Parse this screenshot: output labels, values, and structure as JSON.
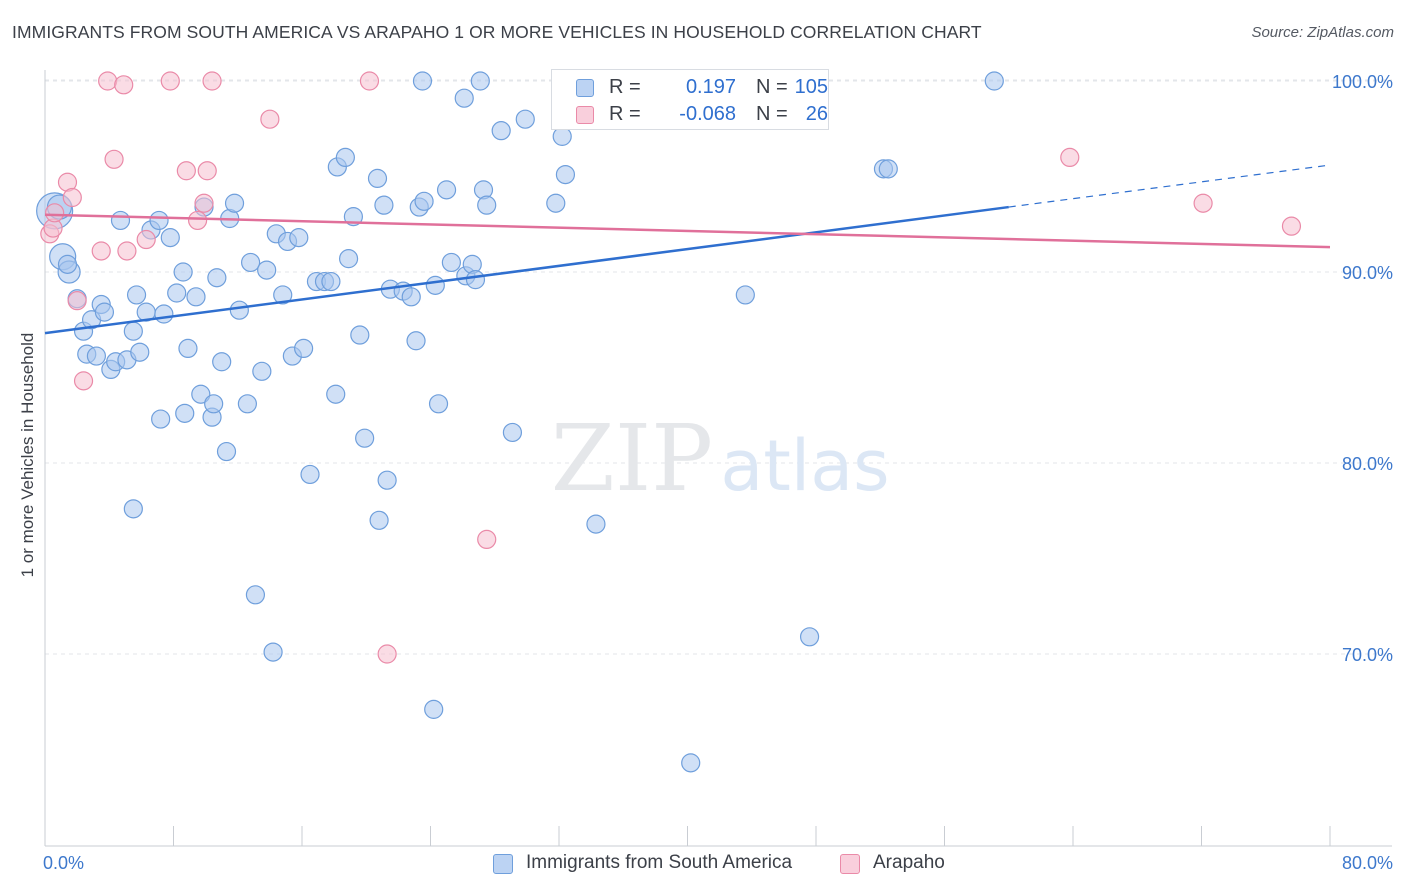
{
  "header": {
    "title": "IMMIGRANTS FROM SOUTH AMERICA VS ARAPAHO 1 OR MORE VEHICLES IN HOUSEHOLD CORRELATION CHART",
    "source": "Source: ZipAtlas.com"
  },
  "watermark": {
    "zip": "ZIP",
    "atlas": "atlas"
  },
  "legend": {
    "series": [
      {
        "name": "Immigrants from South America",
        "r_label": "R =",
        "r_value": "0.197",
        "n_label": "N =",
        "n_value": "105"
      },
      {
        "name": "Arapaho",
        "r_label": "R =",
        "r_value": "-0.068",
        "n_label": "N =",
        "n_value": "26"
      }
    ]
  },
  "chart_data": {
    "type": "scatter",
    "title": "IMMIGRANTS FROM SOUTH AMERICA VS ARAPAHO 1 OR MORE VEHICLES IN HOUSEHOLD CORRELATION CHART",
    "xlabel": "",
    "ylabel": "1 or more Vehicles in Household",
    "xlim": [
      0,
      80
    ],
    "ylim": [
      60,
      102
    ],
    "x_tick_labels": [
      "0.0%",
      "80.0%"
    ],
    "y_ticks": [
      70,
      80,
      90,
      100
    ],
    "y_tick_labels": [
      "70.0%",
      "80.0%",
      "90.0%",
      "100.0%"
    ],
    "grid": true,
    "legend_position": "top-center",
    "series": [
      {
        "name": "Immigrants from South America",
        "color": "#a9c6ee",
        "stroke": "#6f9fdc",
        "trend": {
          "x0": 0,
          "y0": 86.8,
          "x1": 60,
          "y1": 93.4,
          "dash_to_x": 80,
          "dash_to_y": 95.6,
          "color": "#2f6fcf"
        },
        "points": [
          {
            "x": 0.6,
            "y": 93.2,
            "s": 18
          },
          {
            "x": 0.9,
            "y": 93.4,
            "s": 12
          },
          {
            "x": 1.1,
            "y": 90.8,
            "s": 13
          },
          {
            "x": 1.5,
            "y": 90.0,
            "s": 11
          },
          {
            "x": 1.4,
            "y": 90.4,
            "s": 9
          },
          {
            "x": 2.0,
            "y": 88.6,
            "s": 9
          },
          {
            "x": 2.4,
            "y": 86.9,
            "s": 9
          },
          {
            "x": 2.6,
            "y": 85.7,
            "s": 9
          },
          {
            "x": 2.9,
            "y": 87.5,
            "s": 9
          },
          {
            "x": 3.2,
            "y": 85.6,
            "s": 9
          },
          {
            "x": 3.5,
            "y": 88.3,
            "s": 9
          },
          {
            "x": 3.7,
            "y": 87.9,
            "s": 9
          },
          {
            "x": 4.1,
            "y": 84.9,
            "s": 9
          },
          {
            "x": 4.4,
            "y": 85.3,
            "s": 9
          },
          {
            "x": 4.7,
            "y": 92.7,
            "s": 9
          },
          {
            "x": 5.1,
            "y": 85.4,
            "s": 9
          },
          {
            "x": 5.5,
            "y": 86.9,
            "s": 9
          },
          {
            "x": 5.9,
            "y": 85.8,
            "s": 9
          },
          {
            "x": 6.3,
            "y": 87.9,
            "s": 9
          },
          {
            "x": 6.6,
            "y": 92.2,
            "s": 9
          },
          {
            "x": 7.1,
            "y": 92.7,
            "s": 9
          },
          {
            "x": 7.4,
            "y": 87.8,
            "s": 9
          },
          {
            "x": 7.8,
            "y": 91.8,
            "s": 9
          },
          {
            "x": 8.2,
            "y": 88.9,
            "s": 9
          },
          {
            "x": 8.6,
            "y": 90.0,
            "s": 9
          },
          {
            "x": 8.9,
            "y": 86.0,
            "s": 9
          },
          {
            "x": 9.4,
            "y": 88.7,
            "s": 9
          },
          {
            "x": 9.9,
            "y": 93.4,
            "s": 9
          },
          {
            "x": 10.7,
            "y": 89.7,
            "s": 9
          },
          {
            "x": 11.0,
            "y": 85.3,
            "s": 9
          },
          {
            "x": 11.5,
            "y": 92.8,
            "s": 9
          },
          {
            "x": 11.8,
            "y": 93.6,
            "s": 9
          },
          {
            "x": 12.1,
            "y": 88.0,
            "s": 9
          },
          {
            "x": 12.8,
            "y": 90.5,
            "s": 9
          },
          {
            "x": 13.5,
            "y": 84.8,
            "s": 9
          },
          {
            "x": 13.8,
            "y": 90.1,
            "s": 9
          },
          {
            "x": 14.4,
            "y": 92.0,
            "s": 9
          },
          {
            "x": 14.8,
            "y": 88.8,
            "s": 9
          },
          {
            "x": 15.1,
            "y": 91.6,
            "s": 9
          },
          {
            "x": 15.4,
            "y": 85.6,
            "s": 9
          },
          {
            "x": 15.8,
            "y": 91.8,
            "s": 9
          },
          {
            "x": 16.1,
            "y": 86.0,
            "s": 9
          },
          {
            "x": 16.9,
            "y": 89.5,
            "s": 9
          },
          {
            "x": 17.4,
            "y": 89.5,
            "s": 9
          },
          {
            "x": 17.8,
            "y": 89.5,
            "s": 9
          },
          {
            "x": 18.2,
            "y": 95.5,
            "s": 9
          },
          {
            "x": 18.7,
            "y": 96.0,
            "s": 9
          },
          {
            "x": 18.9,
            "y": 90.7,
            "s": 9
          },
          {
            "x": 19.2,
            "y": 92.9,
            "s": 9
          },
          {
            "x": 19.6,
            "y": 86.7,
            "s": 9
          },
          {
            "x": 20.7,
            "y": 94.9,
            "s": 9
          },
          {
            "x": 21.1,
            "y": 93.5,
            "s": 9
          },
          {
            "x": 21.5,
            "y": 89.1,
            "s": 9
          },
          {
            "x": 22.3,
            "y": 89.0,
            "s": 9
          },
          {
            "x": 22.8,
            "y": 88.7,
            "s": 9
          },
          {
            "x": 23.1,
            "y": 86.4,
            "s": 9
          },
          {
            "x": 23.3,
            "y": 93.4,
            "s": 9
          },
          {
            "x": 23.6,
            "y": 93.7,
            "s": 9
          },
          {
            "x": 24.3,
            "y": 89.3,
            "s": 9
          },
          {
            "x": 25.0,
            "y": 94.3,
            "s": 9
          },
          {
            "x": 25.3,
            "y": 90.5,
            "s": 9
          },
          {
            "x": 26.2,
            "y": 89.8,
            "s": 9
          },
          {
            "x": 26.6,
            "y": 90.4,
            "s": 9
          },
          {
            "x": 26.8,
            "y": 89.6,
            "s": 9
          },
          {
            "x": 27.3,
            "y": 94.3,
            "s": 9
          },
          {
            "x": 27.5,
            "y": 93.5,
            "s": 9
          },
          {
            "x": 28.4,
            "y": 97.4,
            "s": 9
          },
          {
            "x": 29.9,
            "y": 98.0,
            "s": 9
          },
          {
            "x": 31.8,
            "y": 93.6,
            "s": 9
          },
          {
            "x": 32.2,
            "y": 97.1,
            "s": 9
          },
          {
            "x": 32.4,
            "y": 95.1,
            "s": 9
          },
          {
            "x": 23.5,
            "y": 100.0,
            "s": 9
          },
          {
            "x": 27.1,
            "y": 100.0,
            "s": 9
          },
          {
            "x": 36.2,
            "y": 100.0,
            "s": 9
          },
          {
            "x": 37.8,
            "y": 100.0,
            "s": 9
          },
          {
            "x": 26.1,
            "y": 99.1,
            "s": 9
          },
          {
            "x": 52.2,
            "y": 95.4,
            "s": 9
          },
          {
            "x": 52.5,
            "y": 95.4,
            "s": 9
          },
          {
            "x": 59.1,
            "y": 100.0,
            "s": 9
          },
          {
            "x": 43.6,
            "y": 88.8,
            "s": 9
          },
          {
            "x": 5.7,
            "y": 88.8,
            "s": 9
          },
          {
            "x": 7.2,
            "y": 82.3,
            "s": 9
          },
          {
            "x": 8.7,
            "y": 82.6,
            "s": 9
          },
          {
            "x": 9.7,
            "y": 83.6,
            "s": 9
          },
          {
            "x": 10.4,
            "y": 82.4,
            "s": 9
          },
          {
            "x": 10.5,
            "y": 83.1,
            "s": 9
          },
          {
            "x": 11.3,
            "y": 80.6,
            "s": 9
          },
          {
            "x": 12.6,
            "y": 83.1,
            "s": 9
          },
          {
            "x": 18.1,
            "y": 83.6,
            "s": 9
          },
          {
            "x": 19.9,
            "y": 81.3,
            "s": 9
          },
          {
            "x": 24.5,
            "y": 83.1,
            "s": 9
          },
          {
            "x": 29.1,
            "y": 81.6,
            "s": 9
          },
          {
            "x": 16.5,
            "y": 79.4,
            "s": 9
          },
          {
            "x": 21.3,
            "y": 79.1,
            "s": 9
          },
          {
            "x": 5.5,
            "y": 77.6,
            "s": 9
          },
          {
            "x": 20.8,
            "y": 77.0,
            "s": 9
          },
          {
            "x": 34.3,
            "y": 76.8,
            "s": 9
          },
          {
            "x": 13.1,
            "y": 73.1,
            "s": 9
          },
          {
            "x": 47.6,
            "y": 70.9,
            "s": 9
          },
          {
            "x": 14.2,
            "y": 70.1,
            "s": 9
          },
          {
            "x": 24.2,
            "y": 67.1,
            "s": 9
          },
          {
            "x": 40.2,
            "y": 64.3,
            "s": 9
          }
        ]
      },
      {
        "name": "Arapaho",
        "color": "#f6bfd0",
        "stroke": "#ea8aa8",
        "trend": {
          "x0": 0,
          "y0": 93.0,
          "x1": 80,
          "y1": 91.3,
          "color": "#e0709a"
        },
        "points": [
          {
            "x": 0.3,
            "y": 92.0,
            "s": 9
          },
          {
            "x": 0.5,
            "y": 92.3,
            "s": 9
          },
          {
            "x": 0.6,
            "y": 93.1,
            "s": 9
          },
          {
            "x": 1.4,
            "y": 94.7,
            "s": 9
          },
          {
            "x": 1.7,
            "y": 93.9,
            "s": 9
          },
          {
            "x": 2.0,
            "y": 88.5,
            "s": 9
          },
          {
            "x": 2.4,
            "y": 84.3,
            "s": 9
          },
          {
            "x": 3.5,
            "y": 91.1,
            "s": 9
          },
          {
            "x": 4.3,
            "y": 95.9,
            "s": 9
          },
          {
            "x": 5.1,
            "y": 91.1,
            "s": 9
          },
          {
            "x": 6.3,
            "y": 91.7,
            "s": 9
          },
          {
            "x": 8.8,
            "y": 95.3,
            "s": 9
          },
          {
            "x": 9.5,
            "y": 92.7,
            "s": 9
          },
          {
            "x": 9.9,
            "y": 93.6,
            "s": 9
          },
          {
            "x": 10.1,
            "y": 95.3,
            "s": 9
          },
          {
            "x": 3.9,
            "y": 100.0,
            "s": 9
          },
          {
            "x": 4.9,
            "y": 99.8,
            "s": 9
          },
          {
            "x": 7.8,
            "y": 100.0,
            "s": 9
          },
          {
            "x": 10.4,
            "y": 100.0,
            "s": 9
          },
          {
            "x": 14.0,
            "y": 98.0,
            "s": 9
          },
          {
            "x": 20.2,
            "y": 100.0,
            "s": 9
          },
          {
            "x": 27.5,
            "y": 76.0,
            "s": 9
          },
          {
            "x": 21.3,
            "y": 70.0,
            "s": 9
          },
          {
            "x": 63.8,
            "y": 96.0,
            "s": 9
          },
          {
            "x": 72.1,
            "y": 93.6,
            "s": 9
          },
          {
            "x": 77.6,
            "y": 92.4,
            "s": 9
          }
        ]
      }
    ]
  }
}
